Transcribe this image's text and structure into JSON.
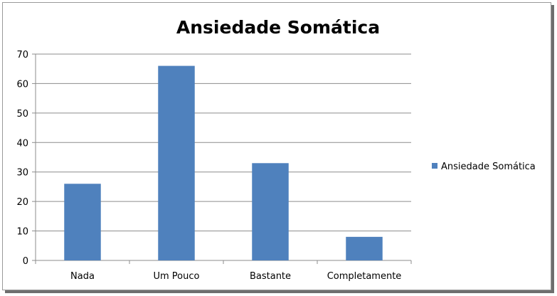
{
  "chart_data": {
    "type": "bar",
    "title": "Ansiedade Somática",
    "categories": [
      "Nada",
      "Um Pouco",
      "Bastante",
      "Completamente"
    ],
    "series": [
      {
        "name": "Ansiedade Somática",
        "values": [
          26,
          66,
          33,
          8
        ],
        "color": "#4f81bd"
      }
    ],
    "yticks": [
      0,
      10,
      20,
      30,
      40,
      50,
      60,
      70
    ],
    "ylim": [
      0,
      70
    ],
    "grid": true,
    "legend_position": "right",
    "xlabel": "",
    "ylabel": ""
  }
}
